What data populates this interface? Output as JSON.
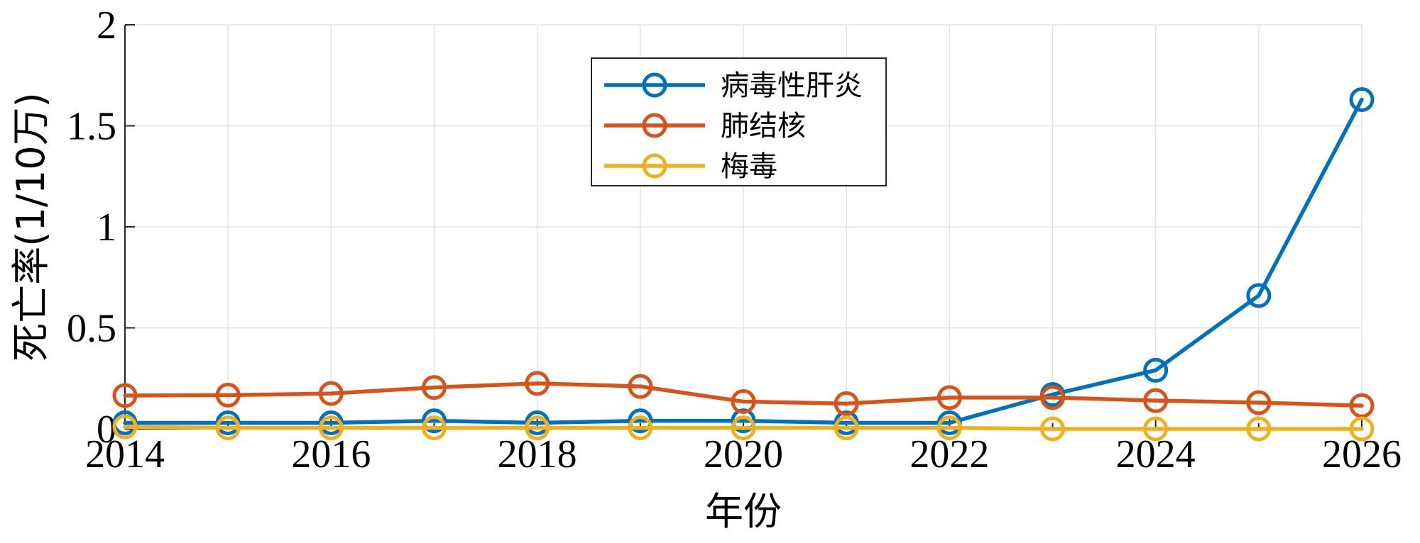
{
  "chart_data": {
    "type": "line",
    "title": "",
    "xlabel": "年份",
    "ylabel": "死亡率(1/10万)",
    "xlim": [
      2014,
      2026
    ],
    "ylim": [
      0,
      2
    ],
    "x_ticks": [
      "2014",
      "2016",
      "2018",
      "2020",
      "2022",
      "2024",
      "2026"
    ],
    "y_ticks": [
      "0",
      "0.5",
      "1",
      "1.5",
      "2"
    ],
    "grid": true,
    "legend_position": "top-center",
    "x": [
      2014,
      2015,
      2016,
      2017,
      2018,
      2019,
      2020,
      2021,
      2022,
      2023,
      2024,
      2025,
      2026
    ],
    "series": [
      {
        "name": "病毒性肝炎",
        "color": "#0072BD",
        "values": [
          0.03,
          0.03,
          0.03,
          0.04,
          0.03,
          0.04,
          0.04,
          0.03,
          0.03,
          0.17,
          0.29,
          0.66,
          1.63
        ]
      },
      {
        "name": "肺结核",
        "color": "#D95319",
        "values": [
          0.165,
          0.167,
          0.175,
          0.205,
          0.225,
          0.21,
          0.135,
          0.125,
          0.155,
          0.155,
          0.14,
          0.13,
          0.115
        ]
      },
      {
        "name": "梅毒",
        "color": "#EDB120",
        "values": [
          0.01,
          0.005,
          0.005,
          0.005,
          0.005,
          0.005,
          0.005,
          0.005,
          0.005,
          0.0,
          0.0,
          0.0,
          0.0
        ]
      }
    ]
  }
}
